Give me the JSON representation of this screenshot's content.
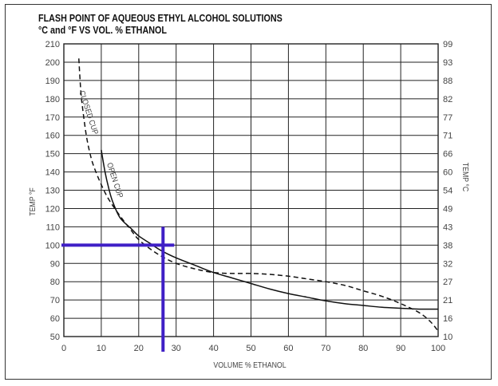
{
  "chart_data": {
    "type": "line",
    "title": "FLASH POINT OF AQUEOUS ETHYL ALCOHOL SOLUTIONS",
    "subtitle": "°C and °F VS VOL. % ETHANOL",
    "xlabel": "VOLUME % ETHANOL",
    "ylabel": "TEMP °F",
    "ylabel_right": "TEMP °C",
    "xlim": [
      0,
      100
    ],
    "ylim": [
      50,
      210
    ],
    "x_ticks": [
      0,
      10,
      20,
      30,
      40,
      50,
      60,
      70,
      80,
      90,
      100
    ],
    "y_ticks": [
      50,
      60,
      70,
      80,
      90,
      100,
      110,
      120,
      130,
      140,
      150,
      160,
      170,
      180,
      190,
      200,
      210
    ],
    "y_right_ticks": [
      "10",
      "16",
      "21",
      "27",
      "32",
      "38",
      "43",
      "49",
      "54",
      "60",
      "66",
      "71",
      "77",
      "82",
      "88",
      "93",
      "99"
    ],
    "grid": true,
    "series": [
      {
        "name": "CLOSED CUP",
        "style": "dashed",
        "color": "#111111",
        "x": [
          4,
          4.5,
          5,
          6,
          7,
          8,
          10,
          12,
          15,
          18,
          20,
          23,
          26,
          30,
          35,
          40,
          45,
          50,
          55,
          60,
          65,
          70,
          75,
          80,
          85,
          90,
          95,
          98,
          100
        ],
        "y": [
          202,
          185,
          175,
          160,
          150,
          143,
          133,
          125,
          116,
          108,
          103,
          98,
          94,
          90,
          87,
          85,
          84.5,
          84.5,
          84,
          83,
          81.5,
          80,
          78,
          75,
          72,
          68,
          63,
          58,
          53
        ]
      },
      {
        "name": "OPEN CUP",
        "style": "solid",
        "color": "#111111",
        "x": [
          10,
          11,
          12,
          13,
          15,
          18,
          20,
          23,
          26,
          30,
          35,
          40,
          45,
          50,
          55,
          60,
          65,
          70,
          75,
          80,
          85,
          90,
          95,
          100
        ],
        "y": [
          152,
          140,
          131,
          124,
          115,
          109,
          105,
          101,
          97,
          93,
          89,
          85,
          82,
          79,
          76,
          73.5,
          71.5,
          69.5,
          68,
          67,
          66,
          65.5,
          65,
          65
        ]
      }
    ],
    "annotations": [
      {
        "text": "CLOSED CUP",
        "x": 6,
        "y": 172
      },
      {
        "text": "OPEN CUP",
        "x": 13,
        "y": 135
      }
    ],
    "highlight": {
      "color": "#3f1fc6",
      "horizontal": {
        "y": 100,
        "x_from": 0,
        "x_to": 29.5
      },
      "vertical": {
        "x": 26.5,
        "y_from": 46,
        "y_to": 110
      }
    }
  }
}
